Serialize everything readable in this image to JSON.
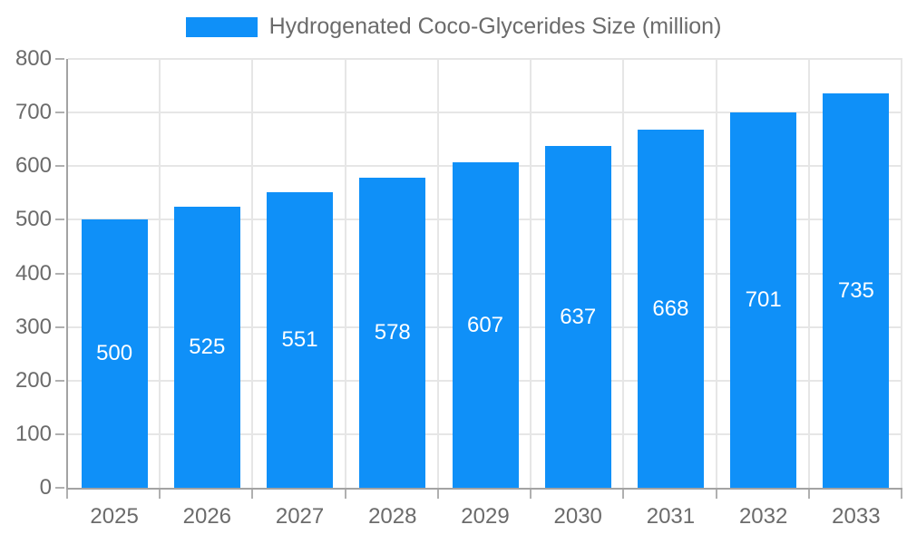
{
  "chart_data": {
    "type": "bar",
    "title": "Hydrogenated Coco-Glycerides Size (million)",
    "legend_label": "Hydrogenated Coco-Glycerides Size (million)",
    "legend_position": "top-center",
    "categories": [
      "2025",
      "2026",
      "2027",
      "2028",
      "2029",
      "2030",
      "2031",
      "2032",
      "2033"
    ],
    "values": [
      500,
      525,
      551,
      578,
      607,
      637,
      668,
      701,
      735
    ],
    "xlabel": "",
    "ylabel": "",
    "ylim": [
      0,
      800
    ],
    "yticks": [
      0,
      100,
      200,
      300,
      400,
      500,
      600,
      700,
      800
    ],
    "grid": true,
    "value_labels": "inside-center",
    "colors": {
      "bar": "#0f90f8",
      "value_label": "#ffffff",
      "axis_text": "#6b6b6b",
      "axis_line": "#a3a3a3",
      "tick": "#b0b0b0",
      "gridline": "#e6e6e6",
      "background": "#ffffff"
    }
  }
}
